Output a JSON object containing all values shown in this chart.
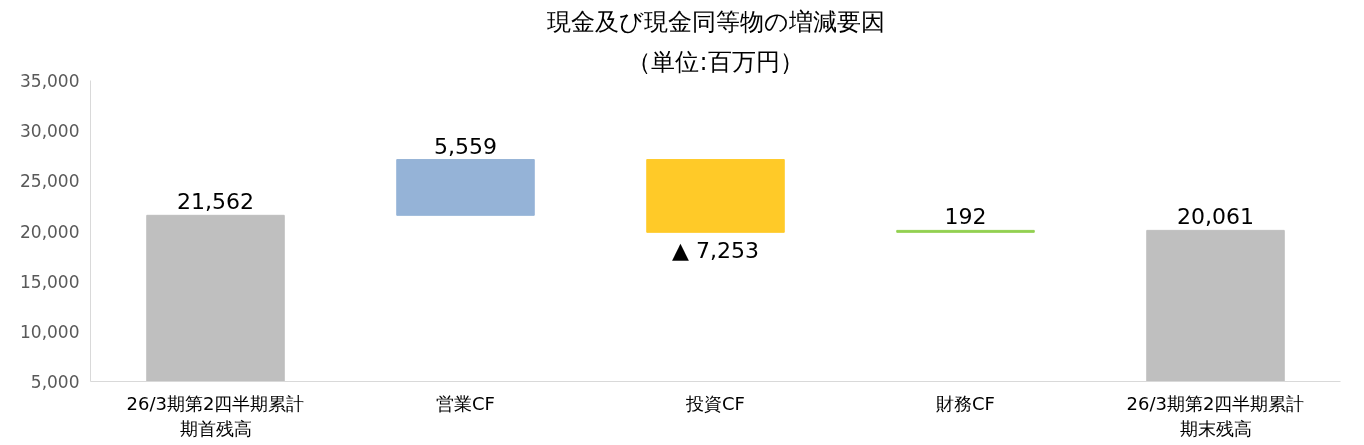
{
  "chart_data": {
    "type": "bar",
    "title": "現金及び現金同等物の増減要因",
    "subtitle": "（単位:百万円）",
    "categories": [
      "26/3期第2四半期累計期首残高",
      "営業CF",
      "投資CF",
      "財務CF",
      "26/3期第2四半期累計期末残高"
    ],
    "values": [
      21562,
      5559,
      -7253,
      192,
      20061
    ],
    "base": [
      null,
      21562,
      27121,
      19868,
      null
    ],
    "colors": [
      "#bfbfbf",
      "#95b3d7",
      "#ffca28",
      "#92d050",
      "#bfbfbf"
    ],
    "value_labels": [
      "21,562",
      "5,559",
      "▲ 7,253",
      "192",
      "20,061"
    ],
    "ylim": [
      5000,
      35000
    ],
    "yticks": [
      {
        "value": 5000,
        "label": "5,000"
      },
      {
        "value": 10000,
        "label": "10,000"
      },
      {
        "value": 15000,
        "label": "15,000"
      },
      {
        "value": 20000,
        "label": "20,000"
      },
      {
        "value": 25000,
        "label": "25,000"
      },
      {
        "value": 30000,
        "label": "30,000"
      },
      {
        "value": 35000,
        "label": "35,000"
      }
    ],
    "grid": false
  }
}
